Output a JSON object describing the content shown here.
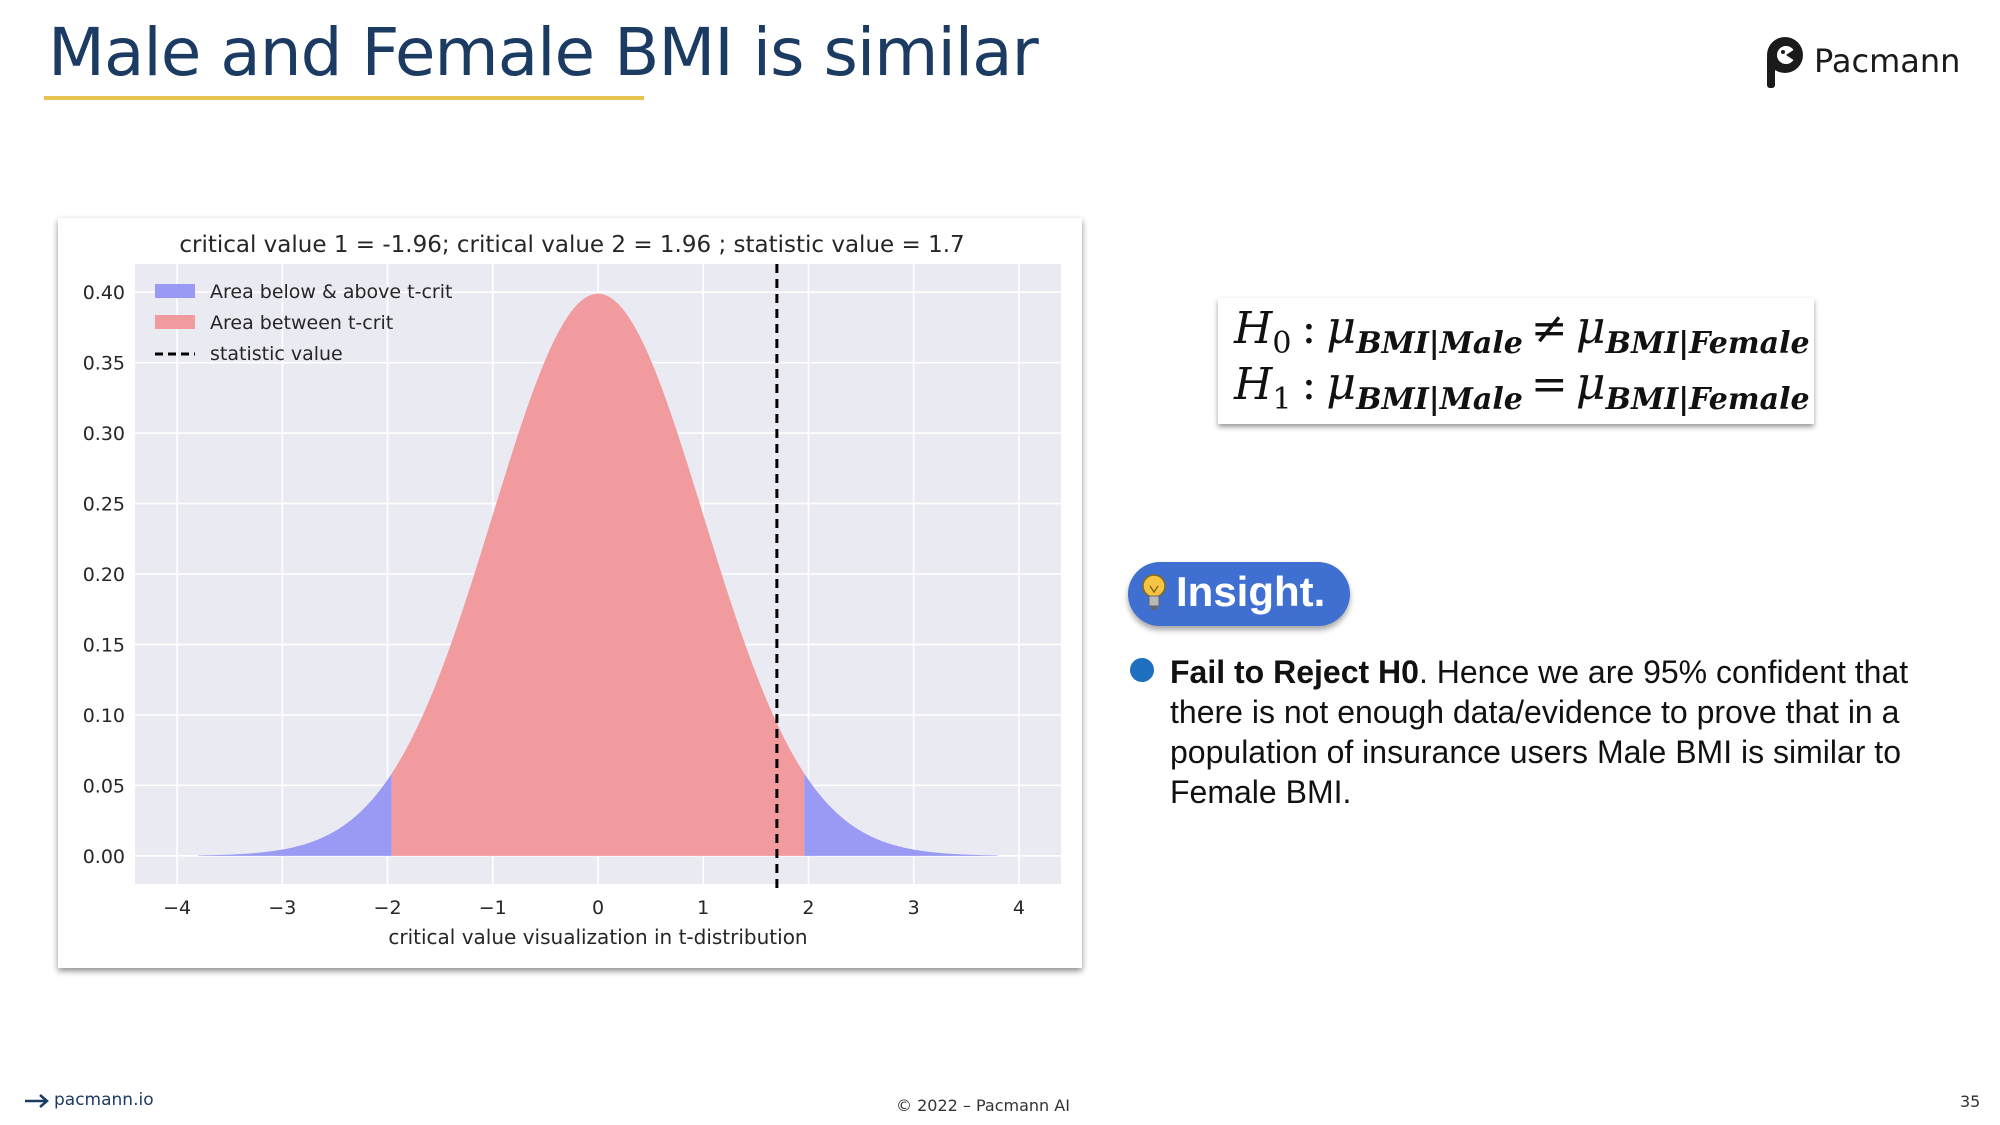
{
  "slide": {
    "title": "Male and Female BMI is similar",
    "brand": "Pacmann",
    "accent_color": "#e8c253",
    "title_color": "#1b3b63"
  },
  "chart_data": {
    "type": "area",
    "title": "critical value 1 = -1.96; critical value 2 = 1.96 ; statistic value = 1.7",
    "xlabel": "critical value visualization in t-distribution",
    "ylabel": "",
    "xlim": [
      -4.4,
      4.4
    ],
    "ylim": [
      -0.02,
      0.42
    ],
    "xticks": [
      "−4",
      "−3",
      "−2",
      "−1",
      "0",
      "1",
      "2",
      "3",
      "4"
    ],
    "xtick_values": [
      -4,
      -3,
      -2,
      -1,
      0,
      1,
      2,
      3,
      4
    ],
    "yticks": [
      "0.00",
      "0.05",
      "0.10",
      "0.15",
      "0.20",
      "0.25",
      "0.30",
      "0.35",
      "0.40"
    ],
    "ytick_values": [
      0,
      0.05,
      0.1,
      0.15,
      0.2,
      0.25,
      0.3,
      0.35,
      0.4
    ],
    "distribution": "t-distribution density",
    "curve_range": [
      -3.8,
      3.8
    ],
    "critical_value_1": -1.96,
    "critical_value_2": 1.96,
    "statistic_value": 1.7,
    "grid": true,
    "background": "#eaeaf2",
    "legend_position": "top-left",
    "series": [
      {
        "name": "Area below & above t-crit",
        "color": "#9a9af5"
      },
      {
        "name": "Area between t-crit",
        "color": "#f19b9f"
      },
      {
        "name": "statistic value",
        "color": "#000000"
      }
    ]
  },
  "hypothesis": {
    "h0_mark": "H",
    "h0_index": "0",
    "h1_mark": "H",
    "h1_index": "1",
    "mu": "μ",
    "group_male": "BMI|Male",
    "group_female": "BMI|Female",
    "not_equal": "≠",
    "equal": "=",
    "colon": ":"
  },
  "insight": {
    "label": "Insight.",
    "pill_color": "#3f6fd0",
    "bold_text": "Fail to Reject H0",
    "text": ". Hence we are 95% confident that there is not enough data/evidence to prove that in a population of insurance users Male BMI is similar to Female BMI."
  },
  "footer": {
    "link": "pacmann.io",
    "copyright": "© 2022 – Pacmann AI",
    "page_number": "35"
  }
}
